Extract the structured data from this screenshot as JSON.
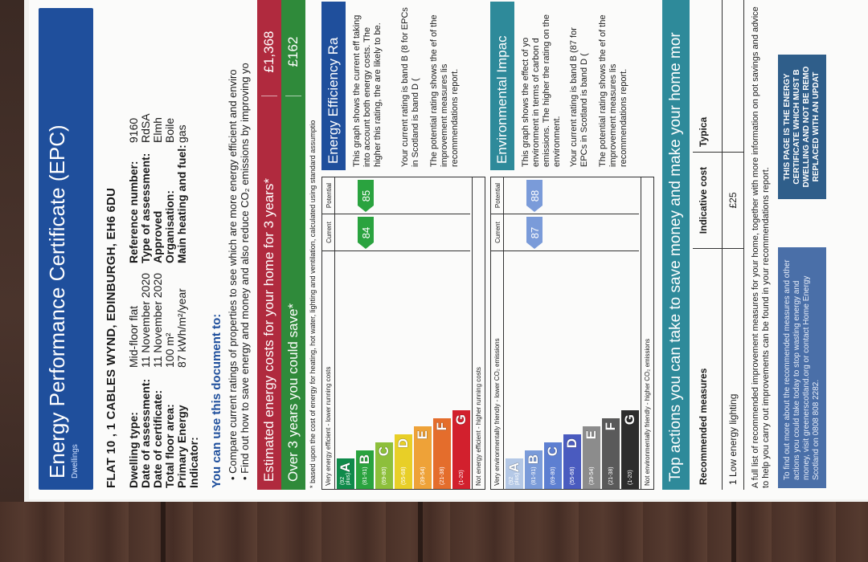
{
  "header": {
    "title": "Energy Performance Certificate (EPC)",
    "subtitle": "Dwellings"
  },
  "address": "FLAT 10 , 1 CABLES WYND, EDINBURGH, EH6 6DU",
  "details": {
    "labels": [
      "Dwelling type:",
      "Date of assessment:",
      "Date of certificate:",
      "Total floor area:",
      "Primary Energy Indicator:"
    ],
    "values": [
      "Mid-floor flat",
      "11 November 2020",
      "11 November 2020",
      "100 m²",
      "87 kWh/m²/year"
    ],
    "labels2": [
      "Reference number:",
      "Type of assessment:",
      "Approved Organisation:",
      "Main heating and fuel:",
      ""
    ],
    "values2": [
      "9160",
      "RdSA",
      "Elmh",
      "Boile",
      "gas"
    ]
  },
  "use": {
    "heading": "You can use this document to:",
    "bullets": [
      "Compare current ratings of properties to see which are more energy efficient and enviro",
      "Find out how to save energy and money and also reduce CO₂ emissions by improving yo"
    ]
  },
  "costs": {
    "heading": "Estimated energy costs for your home for 3 years*",
    "heading_amount": "£1,368",
    "save_label": "Over 3 years you could save*",
    "save_amount": "£162",
    "footnote": "* based upon the cost of energy for heating, hot water, lighting and ventilation, calculated using standard assumptio"
  },
  "efficiency": {
    "top_label": "Very energy efficient - lower running costs",
    "bottom_label": "Not energy efficient - higher running costs",
    "col_current": "Current",
    "col_potential": "Potential",
    "current": "84",
    "potential": "85",
    "info_heading": "Energy Efficiency Ra",
    "info_text": [
      "This graph shows the current eff taking into account both energy costs. The higher this rating, the are likely to be.",
      "Your current rating is band B (8 for EPCs in Scotland is band D (",
      "The potential rating shows the ef of the improvement measures lis recommendations report."
    ]
  },
  "environmental": {
    "top_label": "Very environmentally friendly - lower CO₂ emissions",
    "bottom_label": "Not environmentally friendly - higher CO₂ emissions",
    "col_current": "Current",
    "col_potential": "Potential",
    "current": "87",
    "potential": "88",
    "info_heading": "Environmental Impac",
    "info_text": [
      "This graph shows the effect of yo environment in terms of carbon d emissions. The higher the rating on the environment.",
      "Your current rating is band B (87 for EPCs in Scotland is band D (",
      "The potential rating shows the ef of the improvement measures lis recommendations report."
    ]
  },
  "bands": [
    {
      "letter": "A",
      "range": "(92 plus)",
      "color": "#0f8a4a"
    },
    {
      "letter": "B",
      "range": "(81-91)",
      "color": "#2aa33f"
    },
    {
      "letter": "C",
      "range": "(69-80)",
      "color": "#8dbf3b"
    },
    {
      "letter": "D",
      "range": "(55-68)",
      "color": "#e8cf27"
    },
    {
      "letter": "E",
      "range": "(39-54)",
      "color": "#eea238"
    },
    {
      "letter": "F",
      "range": "(21-38)",
      "color": "#e46d2c"
    },
    {
      "letter": "G",
      "range": "(1-20)",
      "color": "#d2202d"
    }
  ],
  "env_bands": [
    {
      "letter": "A",
      "range": "(92 plus)",
      "color": "#b4c8e6"
    },
    {
      "letter": "B",
      "range": "(81-91)",
      "color": "#7a9bd9"
    },
    {
      "letter": "C",
      "range": "(69-80)",
      "color": "#5d7fd1"
    },
    {
      "letter": "D",
      "range": "(55-68)",
      "color": "#4a5bbf"
    },
    {
      "letter": "E",
      "range": "(39-54)",
      "color": "#8c8c8c"
    },
    {
      "letter": "F",
      "range": "(21-38)",
      "color": "#5a5a5a"
    },
    {
      "letter": "G",
      "range": "(1-20)",
      "color": "#2d2d2d"
    }
  ],
  "actions": {
    "heading": "Top actions you can take to save money and make your home mor",
    "col_measures": "Recommended measures",
    "col_cost": "Indicative cost",
    "col_saving": "Typica",
    "rows": [
      {
        "measure": "1  Low energy lighting",
        "cost": "£25",
        "saving": ""
      }
    ],
    "full_list": "A full list of recommended improvement measures for your home, together with more information on pot savings and advice to help you carry out improvements can be found in your recommendations report.",
    "find_out": "To find out more about the recommended measures and other actions you could take today to stop wasting energy and money, visit greenerscotland.org or contact Home Energy Scotland on 0808 808 2282.",
    "notice": "THIS PAGE IS THE ENERGY CERTIFICATE WHICH MUST B DWELLING AND NOT BE REMO REPLACED WITH AN UPDAT"
  }
}
